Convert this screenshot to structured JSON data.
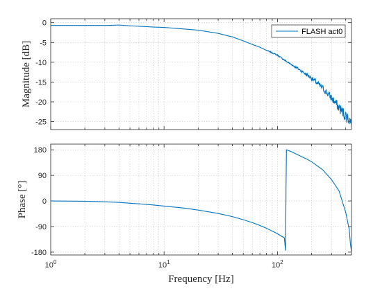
{
  "chart_data": [
    {
      "type": "line",
      "xscale": "log",
      "xlim": [
        1,
        450
      ],
      "ylim": [
        -27,
        1
      ],
      "yticks": [
        0,
        -5,
        -10,
        -15,
        -20,
        -25
      ],
      "ytick_labels": [
        "0",
        "-5",
        "-10",
        "-15",
        "-20",
        "-25"
      ],
      "xtick_labels": [],
      "ylabel": "Magnitude [dB]",
      "xlabel": "",
      "grid": true,
      "legend": {
        "entries": [
          "FLASH act0"
        ],
        "position": "top-right"
      },
      "series": [
        {
          "name": "FLASH act0",
          "color": "#0072bd",
          "noisy_above_hz": 80,
          "x": [
            1,
            2,
            3,
            4,
            5,
            6,
            8,
            10,
            15,
            20,
            30,
            40,
            50,
            60,
            70,
            80,
            100,
            120,
            150,
            200,
            250,
            300,
            350,
            400,
            450
          ],
          "y": [
            -0.7,
            -0.7,
            -0.7,
            -0.6,
            -0.8,
            -0.9,
            -1.1,
            -1.2,
            -1.6,
            -1.9,
            -2.7,
            -3.6,
            -4.6,
            -5.5,
            -6.2,
            -7.0,
            -8.2,
            -9.8,
            -11.5,
            -14.0,
            -16.5,
            -19.0,
            -21.5,
            -23.5,
            -25.0
          ]
        }
      ]
    },
    {
      "type": "line",
      "xscale": "log",
      "xlim": [
        1,
        450
      ],
      "ylim": [
        -190,
        200
      ],
      "yticks": [
        180,
        90,
        0,
        -90,
        -180
      ],
      "ytick_labels": [
        "180",
        "90",
        "0",
        "-90",
        "-180"
      ],
      "xticks": [
        1,
        10,
        100
      ],
      "xtick_labels": [
        [
          "10",
          "0"
        ],
        [
          "10",
          "1"
        ],
        [
          "10",
          "2"
        ]
      ],
      "ylabel": "Phase [°]",
      "xlabel": "Frequency [Hz]",
      "grid": true,
      "series": [
        {
          "color": "#0072bd",
          "x": [
            1,
            2,
            3,
            4,
            5,
            6,
            8,
            10,
            15,
            20,
            30,
            40,
            50,
            60,
            70,
            80,
            100,
            115,
            118,
            119,
            120,
            130,
            150,
            180,
            200,
            250,
            300,
            350,
            400,
            430,
            440,
            450
          ],
          "y": [
            0,
            -1,
            -3,
            -5,
            -8,
            -10,
            -14,
            -18,
            -25,
            -32,
            -44,
            -55,
            -66,
            -76,
            -86,
            -96,
            -115,
            -130,
            -175,
            40,
            180,
            175,
            163,
            148,
            138,
            110,
            75,
            35,
            -40,
            -100,
            -150,
            -180
          ]
        }
      ]
    }
  ]
}
